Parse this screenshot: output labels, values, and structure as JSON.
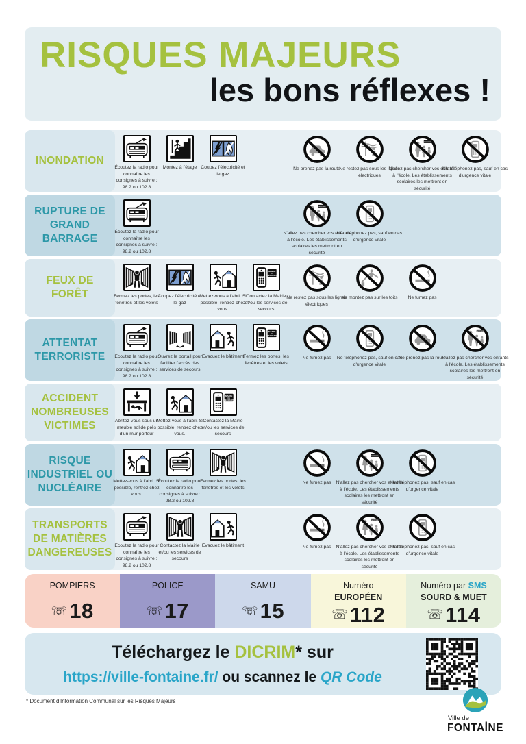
{
  "header": {
    "title_line1": "RISQUES MAJEURS",
    "title_line2": "les bons réflexes !"
  },
  "colors": {
    "accent_green": "#a5c13f",
    "accent_teal": "#2d98a8",
    "link_cyan": "#29a5c8",
    "header_bg": "#e3edf1",
    "footer_bg": "#d7e7ef"
  },
  "emergency_phone_glyph": "☏",
  "rows": [
    {
      "id": "inondation",
      "label": "INONDATION",
      "label_color": "green",
      "shade": "light",
      "actions": [
        {
          "icon": "radio",
          "caption": "Écoutez la radio pour connaître les consignes à suivre : 98.2 ou 102.8"
        },
        {
          "icon": "stairs",
          "caption": "Montez à l'étage"
        },
        {
          "icon": "utilities",
          "caption": "Coupez l'électricité et le gaz"
        }
      ],
      "prohibitions": [
        {
          "icon": "no-car",
          "caption": "Ne prenez pas la route"
        },
        {
          "icon": "no-powerlines",
          "caption": "Ne restez pas sous les lignes électriques"
        },
        {
          "icon": "no-school",
          "caption": "N'allez pas chercher vos enfants à l'école. Les établissements scolaires les mettront en sécurité"
        },
        {
          "icon": "no-phone",
          "caption": "Ne téléphonez pas, sauf en cas d'urgence vitale"
        }
      ]
    },
    {
      "id": "rupture-de-grand-barrage",
      "label": "RUPTURE DE GRAND BARRAGE",
      "label_color": "teal",
      "shade": "dark",
      "actions": [
        {
          "icon": "radio",
          "caption": "Écoutez la radio pour connaître les consignes à suivre : 98.2 ou 102.8"
        }
      ],
      "prohibitions": [
        {
          "icon": "no-school",
          "caption": "N'allez pas chercher vos enfants à l'école. Les établissements scolaires les mettront en sécurité"
        },
        {
          "icon": "no-phone",
          "caption": "Ne téléphonez pas, sauf en cas d'urgence vitale"
        }
      ]
    },
    {
      "id": "feux-de-foret",
      "label": "FEUX DE FORÊT",
      "label_color": "green",
      "shade": "light",
      "actions": [
        {
          "icon": "shutters",
          "caption": "Fermez les portes, les fenêtres et les volets"
        },
        {
          "icon": "utilities",
          "caption": "Coupez l'électricité et le gaz"
        },
        {
          "icon": "shelter",
          "caption": "Mettez-vous à l'abri. Si possible, rentrez chez vous."
        },
        {
          "icon": "phone-mairie",
          "caption": "Contactez la Mairie et/ou les services de secours"
        }
      ],
      "prohibitions": [
        {
          "icon": "no-powerlines",
          "caption": "Ne restez pas sous les lignes électriques"
        },
        {
          "icon": "no-roof",
          "caption": "Ne montez pas sur les toits"
        },
        {
          "icon": "no-smoking",
          "caption": "Ne fumez pas"
        }
      ]
    },
    {
      "id": "attentat-terroriste",
      "label": "ATTENTAT TERRORISTE",
      "label_color": "teal",
      "shade": "dark",
      "actions": [
        {
          "icon": "radio",
          "caption": "Écoutez la radio pour connaître les consignes à suivre : 98.2 ou 102.8"
        },
        {
          "icon": "gate",
          "caption": "Ouvrez le portail pour faciliter l'accès des services de secours"
        },
        {
          "icon": "evacuate",
          "caption": "Évacuez le bâtiment"
        },
        {
          "icon": "phone-mairie",
          "caption": "Fermez les portes, les fenêtres et les volets"
        }
      ],
      "prohibitions": [
        {
          "icon": "no-smoking",
          "caption": "Ne fumez pas"
        },
        {
          "icon": "no-phone",
          "caption": "Ne téléphonez pas, sauf en cas d'urgence vitale"
        },
        {
          "icon": "no-car",
          "caption": "Ne prenez pas la route"
        },
        {
          "icon": "no-school",
          "caption": "N'allez pas chercher vos enfants à l'école. Les établissements scolaires les mettront en sécurité"
        }
      ]
    },
    {
      "id": "accident-nombreuses-victimes",
      "label": "ACCIDENT NOMBREUSES VICTIMES",
      "label_color": "green",
      "shade": "light",
      "actions": [
        {
          "icon": "table",
          "caption": "Abritez-vous sous un meuble solide près d'un mur porteur"
        },
        {
          "icon": "shelter",
          "caption": "Mettez-vous à l'abri. Si possible, rentrez chez vous."
        },
        {
          "icon": "phone-mairie",
          "caption": "Contactez la Mairie et/ou les services de secours"
        }
      ],
      "prohibitions": []
    },
    {
      "id": "risque-industriel-ou-nucleaire",
      "label": "RISQUE INDUSTRIEL OU NUCLÉAIRE",
      "label_color": "teal",
      "shade": "dark",
      "actions": [
        {
          "icon": "shelter",
          "caption": "Mettez-vous à l'abri. Si possible, rentrez chez vous."
        },
        {
          "icon": "radio",
          "caption": "Écoutez la radio pour connaître les consignes à suivre : 98.2 ou 102.8"
        },
        {
          "icon": "shutters",
          "caption": "Fermez les portes, les fenêtres et les volets"
        }
      ],
      "prohibitions": [
        {
          "icon": "no-smoking",
          "caption": "Ne fumez pas"
        },
        {
          "icon": "no-school",
          "caption": "N'allez pas chercher vos enfants à l'école. Les établissements scolaires les mettront en sécurité"
        },
        {
          "icon": "no-phone",
          "caption": "Ne téléphonez pas, sauf en cas d'urgence vitale"
        }
      ]
    },
    {
      "id": "transports-de-matieres-dangereuses",
      "label": "TRANSPORTS DE MATIÈRES DANGEREUSES",
      "label_color": "green",
      "shade": "light",
      "actions": [
        {
          "icon": "radio",
          "caption": "Écoutez la radio pour connaître les consignes à suivre : 98.2 ou 102.8"
        },
        {
          "icon": "shutters",
          "caption": "Contactez la Mairie et/ou les services de secours"
        },
        {
          "icon": "evacuate",
          "caption": "Évacuez le bâtiment"
        }
      ],
      "prohibitions": [
        {
          "icon": "no-smoking",
          "caption": "Ne fumez pas"
        },
        {
          "icon": "no-school",
          "caption": "N'allez pas chercher vos enfants à l'école. Les établissements scolaires les mettront en sécurité"
        },
        {
          "icon": "no-phone",
          "caption": "Ne téléphonez pas, sauf en cas d'urgence vitale"
        }
      ]
    }
  ],
  "emergency_numbers": [
    {
      "id": "pompiers",
      "line1": "POMPIERS",
      "line1_accent": "",
      "line2": "",
      "number": "18",
      "bg": "#f9d2c6"
    },
    {
      "id": "police",
      "line1": "POLICE",
      "line1_accent": "",
      "line2": "",
      "number": "17",
      "bg": "#9b99c9"
    },
    {
      "id": "samu",
      "line1": "SAMU",
      "line1_accent": "",
      "line2": "",
      "number": "15",
      "bg": "#cdd8eb"
    },
    {
      "id": "europeen",
      "line1": "Numéro",
      "line1_accent": "",
      "line2": "EUROPÉEN",
      "number": "112",
      "bg": "#f8f6da"
    },
    {
      "id": "sms-sourd-muet",
      "line1": "Numéro par ",
      "line1_accent": "SMS",
      "line2": "SOURD & MUET",
      "number": "114",
      "bg": "#e5efdc"
    }
  ],
  "footer": {
    "line1_prefix": "Téléchargez le ",
    "line1_highlight": "DICRIM",
    "line1_star": "*",
    "line1_suffix": " sur",
    "url": "https://ville-fontaine.fr/",
    "line2_middle": " ou scannez le ",
    "line2_qr_label": "QR Code",
    "footnote": "* Document d'Information Communal sur les Risques Majeurs"
  },
  "logo": {
    "line1": "Ville de",
    "line2": "FONTAİNE"
  }
}
